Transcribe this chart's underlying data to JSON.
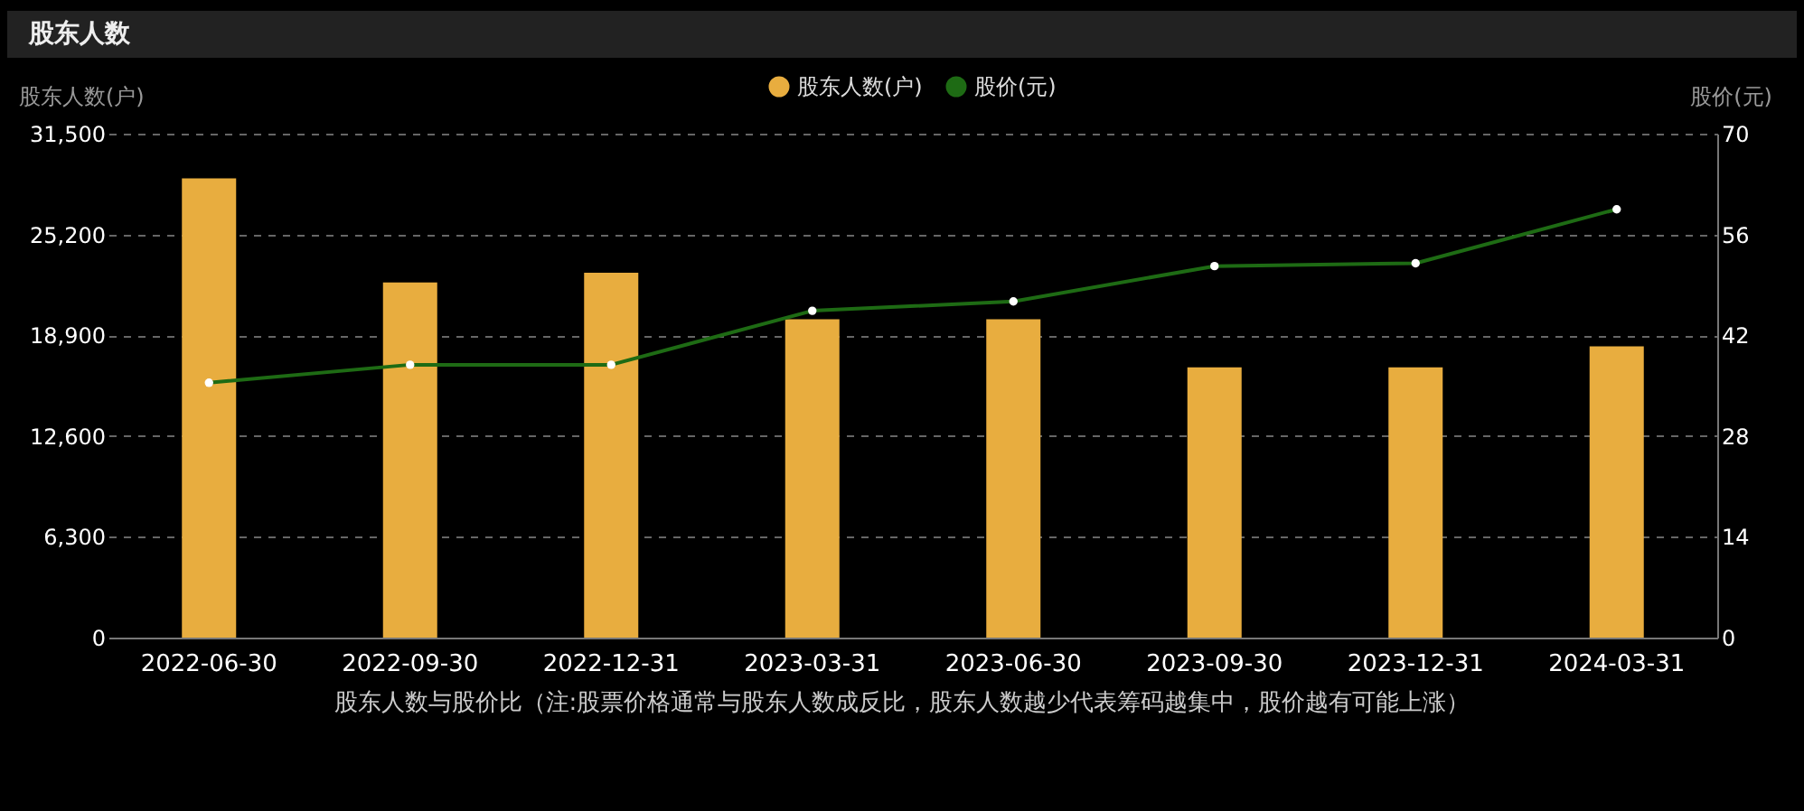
{
  "chart_data": {
    "type": "bar",
    "title": "股东人数",
    "ylabel": "股东人数(户)",
    "y2label": "股价(元)",
    "annotations": [
      "股东人数与股价比（注:股票价格通常与股东人数成反比，股东人数越少代表筹码越集中，股价越有可能上涨）"
    ],
    "categories": [
      "2022-06-30",
      "2022-09-30",
      "2022-12-31",
      "2023-03-31",
      "2023-06-30",
      "2023-09-30",
      "2023-12-31",
      "2024-03-31"
    ],
    "series": [
      {
        "name": "股东人数(户)",
        "color": "#e8ad3f",
        "values": [
          28700,
          22200,
          22800,
          19900,
          19900,
          16900,
          16900,
          18200
        ]
      },
      {
        "name": "股价(元)",
        "type": "line",
        "axis": "y2",
        "color": "#1e6b14",
        "marker": "circle",
        "values": [
          35.4,
          37.9,
          37.9,
          45.4,
          46.7,
          51.6,
          52.0,
          59.5
        ]
      }
    ],
    "ylim": [
      0,
      31500
    ],
    "yticks": [
      0,
      {
        "value": 6300,
        "label": "6,300"
      },
      {
        "value": 12600,
        "label": "12,600"
      },
      {
        "value": 18900,
        "label": "18,900"
      },
      {
        "value": 25200,
        "label": "25,200"
      },
      {
        "value": 31500,
        "label": "31,500"
      }
    ],
    "y2lim": [
      0,
      70
    ],
    "y2ticks": [
      0,
      14,
      28,
      42,
      56,
      70
    ],
    "grid": "y",
    "legend": "top"
  }
}
